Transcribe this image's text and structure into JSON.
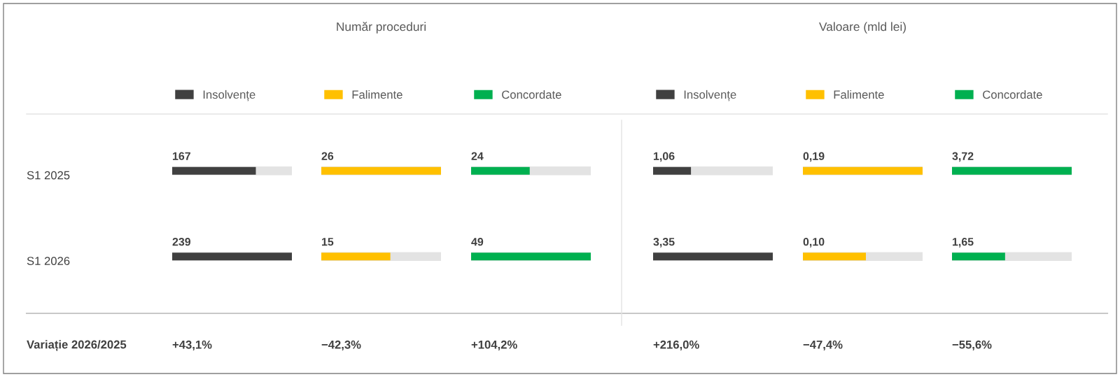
{
  "chart_data": [
    {
      "type": "bar",
      "orientation": "horizontal",
      "categories": [
        "S1 2025",
        "S1 2026"
      ],
      "tick_labels": "y",
      "legend": "top",
      "data_labels": true,
      "series": [
        {
          "name": "Insolvențe",
          "color": "#404040",
          "values": [
            167,
            239
          ]
        }
      ],
      "annotations": [
        "Variație 2026/2025",
        "+43,1%"
      ]
    },
    {
      "type": "bar",
      "orientation": "horizontal",
      "title": "Număr proceduri",
      "legend": "top",
      "data_labels": true,
      "series": [
        {
          "name": "Falimente",
          "color": "#ffc000",
          "values": [
            26,
            15
          ]
        }
      ],
      "annotations": [
        "−42,3%"
      ]
    },
    {
      "type": "bar",
      "orientation": "horizontal",
      "legend": "top",
      "data_labels": true,
      "series": [
        {
          "name": "Concordate",
          "color": "#00b050",
          "values": [
            24,
            49
          ]
        }
      ],
      "annotations": [
        "+104,2%"
      ]
    },
    {
      "type": "bar",
      "orientation": "horizontal",
      "legend": "top",
      "series": [
        {
          "name": "Insolvențe",
          "color": "#404040",
          "values": [
            1.06,
            3.35
          ],
          "value_labels": [
            "1,06",
            "3,35"
          ]
        }
      ],
      "annotations": [
        "+216,0%"
      ]
    },
    {
      "type": "bar",
      "orientation": "horizontal",
      "title": "Valoare (mld lei)",
      "legend": "top",
      "series": [
        {
          "name": "Falimente",
          "color": "#ffc000",
          "values": [
            0.19,
            0.1
          ],
          "value_labels": [
            "0,19",
            "0,10"
          ]
        }
      ],
      "annotations": [
        "−47,4%"
      ]
    },
    {
      "type": "bar",
      "orientation": "horizontal",
      "legend": "top",
      "series": [
        {
          "name": "Concordate",
          "color": "#00b050",
          "values": [
            3.72,
            1.65
          ],
          "value_labels": [
            "3,72",
            "1,65"
          ]
        }
      ],
      "annotations": [
        "−55,6%"
      ]
    }
  ]
}
